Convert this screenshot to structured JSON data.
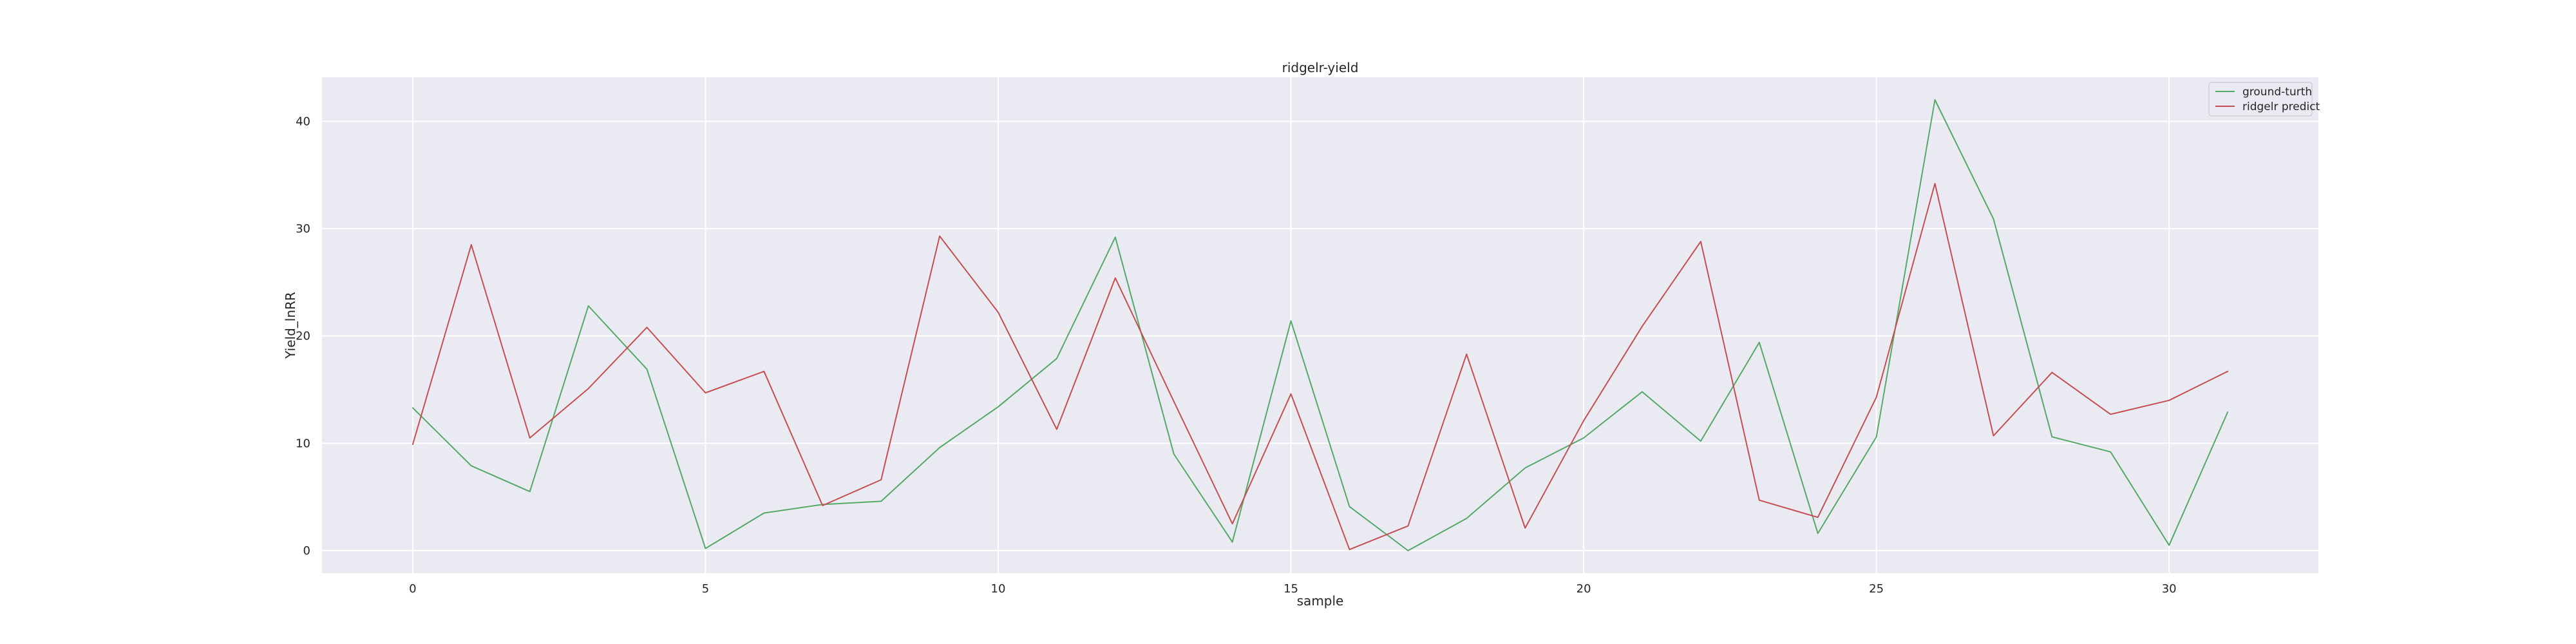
{
  "chart_data": {
    "type": "line",
    "title": "ridgelr-yield",
    "xlabel": "sample",
    "ylabel": "Yield_lnRR",
    "xlim": [
      -1.55,
      32.55
    ],
    "ylim": [
      -2.1,
      44.1
    ],
    "xticks": [
      0,
      5,
      10,
      15,
      20,
      25,
      30
    ],
    "yticks": [
      0,
      10,
      20,
      30,
      40
    ],
    "grid": true,
    "legend_position": "top-right",
    "x": [
      0,
      1,
      2,
      3,
      4,
      5,
      6,
      7,
      8,
      9,
      10,
      11,
      12,
      13,
      14,
      15,
      16,
      17,
      18,
      19,
      20,
      21,
      22,
      23,
      24,
      25,
      26,
      27,
      28,
      29,
      30,
      31
    ],
    "series": [
      {
        "name": "ground-turth",
        "color": "#55a868",
        "values": [
          13.3,
          7.9,
          5.5,
          22.8,
          16.9,
          0.2,
          3.5,
          4.3,
          4.6,
          9.6,
          13.4,
          17.9,
          29.2,
          9.0,
          0.8,
          21.4,
          4.1,
          0.0,
          3.0,
          7.7,
          10.5,
          14.8,
          10.2,
          19.4,
          1.6,
          10.6,
          42.0,
          30.9,
          10.6,
          9.2,
          0.5,
          12.9
        ]
      },
      {
        "name": "ridgelr predict",
        "color": "#c44e52",
        "values": [
          9.9,
          28.5,
          10.5,
          15.1,
          20.8,
          14.7,
          16.7,
          4.2,
          6.6,
          29.3,
          22.2,
          11.3,
          25.4,
          13.9,
          2.5,
          14.6,
          0.1,
          2.3,
          18.3,
          2.1,
          12.1,
          20.9,
          28.8,
          4.7,
          3.1,
          14.3,
          34.2,
          10.7,
          16.6,
          12.7,
          14.0,
          16.7
        ]
      }
    ]
  }
}
